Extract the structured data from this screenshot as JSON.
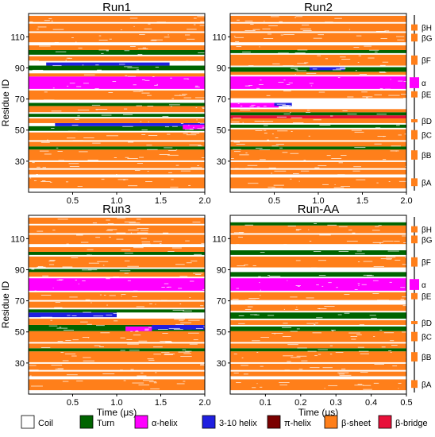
{
  "colors": {
    "coil": "#ffffff",
    "turn": "#006400",
    "alpha_helix": "#ff00ff",
    "helix_310": "#1f1fe0",
    "pi_helix": "#7a0000",
    "beta_sheet": "#ff7f1a",
    "beta_bridge": "#e8103a"
  },
  "legend": {
    "items": [
      {
        "key": "coil",
        "label": "Coil"
      },
      {
        "key": "turn",
        "label": "Turn"
      },
      {
        "key": "alpha_helix",
        "label": "α-helix"
      },
      {
        "key": "helix_310",
        "label": "3-10 helix"
      },
      {
        "key": "pi_helix",
        "label": "π-helix"
      },
      {
        "key": "beta_sheet",
        "label": "β-sheet"
      },
      {
        "key": "beta_bridge",
        "label": "β-bridge"
      }
    ]
  },
  "topology": {
    "elements": [
      {
        "label": "βH",
        "type": "beta_sheet",
        "range": [
          114,
          118
        ]
      },
      {
        "label": "βG",
        "type": "beta_sheet",
        "range": [
          107,
          112
        ]
      },
      {
        "label": "βF",
        "type": "beta_sheet",
        "range": [
          92,
          98
        ]
      },
      {
        "label": "α",
        "type": "alpha_helix",
        "range": [
          77,
          84
        ]
      },
      {
        "label": "βE",
        "type": "beta_sheet",
        "range": [
          71,
          75
        ]
      },
      {
        "label": "βD",
        "type": "beta_sheet",
        "range": [
          55,
          57
        ]
      },
      {
        "label": "βC",
        "type": "beta_sheet",
        "range": [
          44,
          50
        ]
      },
      {
        "label": "βB",
        "type": "beta_sheet",
        "range": [
          31,
          37
        ]
      },
      {
        "label": "βA",
        "type": "beta_sheet",
        "range": [
          14,
          19
        ]
      }
    ]
  },
  "chart_data": [
    {
      "type": "heatmap",
      "title": "Run1",
      "ylabel": "Residue ID",
      "xlabel": "",
      "xlim": [
        0,
        2.0
      ],
      "ylim": [
        10,
        125
      ],
      "xticks": [
        0.5,
        1.0,
        1.5,
        2.0
      ],
      "yticks": [
        30,
        50,
        70,
        90,
        110
      ],
      "segments": [
        {
          "type": "beta_sheet",
          "r": [
            13,
            19
          ]
        },
        {
          "type": "beta_sheet",
          "r": [
            22,
            24
          ]
        },
        {
          "type": "beta_sheet",
          "r": [
            26,
            29
          ]
        },
        {
          "type": "beta_sheet",
          "r": [
            31,
            37
          ]
        },
        {
          "type": "turn",
          "r": [
            38,
            39
          ]
        },
        {
          "type": "beta_sheet",
          "r": [
            40,
            42
          ]
        },
        {
          "type": "beta_sheet",
          "r": [
            44,
            48
          ]
        },
        {
          "type": "turn",
          "r": [
            50,
            52
          ]
        },
        {
          "type": "helix_310",
          "r": [
            53,
            54
          ],
          "t": [
            0.3,
            2.0
          ]
        },
        {
          "type": "alpha_helix",
          "r": [
            51,
            53
          ],
          "t": [
            1.75,
            2.0
          ]
        },
        {
          "type": "beta_sheet",
          "r": [
            55,
            57
          ]
        },
        {
          "type": "turn",
          "r": [
            59,
            60
          ]
        },
        {
          "type": "beta_sheet",
          "r": [
            62,
            65
          ]
        },
        {
          "type": "turn",
          "r": [
            66,
            67
          ]
        },
        {
          "type": "beta_sheet",
          "r": [
            70,
            75
          ]
        },
        {
          "type": "alpha_helix",
          "r": [
            77,
            84
          ]
        },
        {
          "type": "beta_sheet",
          "r": [
            85,
            86
          ]
        },
        {
          "type": "turn",
          "r": [
            89,
            91
          ]
        },
        {
          "type": "helix_310",
          "r": [
            92,
            93
          ],
          "t": [
            0.2,
            1.6
          ]
        },
        {
          "type": "beta_sheet",
          "r": [
            95,
            97
          ]
        },
        {
          "type": "turn",
          "r": [
            99,
            101
          ]
        },
        {
          "type": "beta_sheet",
          "r": [
            102,
            104
          ]
        },
        {
          "type": "beta_sheet",
          "r": [
            107,
            112
          ]
        },
        {
          "type": "beta_sheet",
          "r": [
            114,
            118
          ]
        },
        {
          "type": "beta_sheet",
          "r": [
            120,
            123
          ]
        }
      ]
    },
    {
      "type": "heatmap",
      "title": "Run2",
      "ylabel": "",
      "xlabel": "",
      "xlim": [
        0,
        2.0
      ],
      "ylim": [
        10,
        125
      ],
      "xticks": [
        0.5,
        1.0,
        1.5,
        2.0
      ],
      "yticks": [
        30,
        50,
        70,
        90,
        110
      ],
      "segments": [
        {
          "type": "beta_sheet",
          "r": [
            13,
            19
          ]
        },
        {
          "type": "beta_sheet",
          "r": [
            22,
            24
          ]
        },
        {
          "type": "beta_sheet",
          "r": [
            26,
            29
          ]
        },
        {
          "type": "beta_sheet",
          "r": [
            31,
            37
          ]
        },
        {
          "type": "turn",
          "r": [
            38,
            39
          ]
        },
        {
          "type": "beta_sheet",
          "r": [
            40,
            42
          ]
        },
        {
          "type": "beta_sheet",
          "r": [
            44,
            50
          ]
        },
        {
          "type": "turn",
          "r": [
            52,
            53
          ]
        },
        {
          "type": "beta_sheet",
          "r": [
            55,
            57
          ]
        },
        {
          "type": "beta_bridge",
          "r": [
            58,
            59
          ]
        },
        {
          "type": "turn",
          "r": [
            60,
            61
          ]
        },
        {
          "type": "beta_sheet",
          "r": [
            62,
            63
          ]
        },
        {
          "type": "alpha_helix",
          "r": [
            65,
            67
          ],
          "t": [
            0.0,
            0.55
          ]
        },
        {
          "type": "helix_310",
          "r": [
            66,
            67
          ],
          "t": [
            0.5,
            0.7
          ]
        },
        {
          "type": "beta_sheet",
          "r": [
            71,
            75
          ]
        },
        {
          "type": "alpha_helix",
          "r": [
            77,
            84
          ]
        },
        {
          "type": "beta_sheet",
          "r": [
            86,
            87
          ]
        },
        {
          "type": "turn",
          "r": [
            88,
            90
          ]
        },
        {
          "type": "helix_310",
          "r": [
            89,
            90
          ],
          "t": [
            0.9,
            1.3
          ]
        },
        {
          "type": "beta_sheet",
          "r": [
            92,
            98
          ]
        },
        {
          "type": "turn",
          "r": [
            100,
            101
          ]
        },
        {
          "type": "beta_sheet",
          "r": [
            102,
            104
          ]
        },
        {
          "type": "beta_sheet",
          "r": [
            107,
            112
          ]
        },
        {
          "type": "beta_sheet",
          "r": [
            114,
            118
          ]
        },
        {
          "type": "beta_sheet",
          "r": [
            120,
            123
          ]
        }
      ]
    },
    {
      "type": "heatmap",
      "title": "Run3",
      "ylabel": "Residue ID",
      "xlabel": "Time (μs)",
      "xlim": [
        0,
        2.0
      ],
      "ylim": [
        10,
        125
      ],
      "xticks": [
        0.5,
        1.0,
        1.5,
        2.0
      ],
      "yticks": [
        30,
        50,
        70,
        90,
        110
      ],
      "segments": [
        {
          "type": "beta_sheet",
          "r": [
            13,
            19
          ]
        },
        {
          "type": "beta_sheet",
          "r": [
            22,
            24
          ]
        },
        {
          "type": "beta_sheet",
          "r": [
            26,
            29
          ]
        },
        {
          "type": "beta_sheet",
          "r": [
            31,
            37
          ]
        },
        {
          "type": "turn",
          "r": [
            38,
            39
          ]
        },
        {
          "type": "beta_sheet",
          "r": [
            40,
            42
          ]
        },
        {
          "type": "beta_sheet",
          "r": [
            44,
            50
          ]
        },
        {
          "type": "turn",
          "r": [
            51,
            54
          ]
        },
        {
          "type": "alpha_helix",
          "r": [
            51,
            53
          ],
          "t": [
            1.1,
            1.4
          ]
        },
        {
          "type": "helix_310",
          "r": [
            52,
            54
          ],
          "t": [
            1.4,
            2.0
          ]
        },
        {
          "type": "beta_sheet",
          "r": [
            55,
            58
          ]
        },
        {
          "type": "helix_310",
          "r": [
            60,
            62
          ],
          "t": [
            0.0,
            1.0
          ]
        },
        {
          "type": "turn",
          "r": [
            63,
            64
          ]
        },
        {
          "type": "beta_sheet",
          "r": [
            66,
            69
          ]
        },
        {
          "type": "beta_sheet",
          "r": [
            71,
            75
          ]
        },
        {
          "type": "alpha_helix",
          "r": [
            77,
            84
          ]
        },
        {
          "type": "beta_sheet",
          "r": [
            86,
            88
          ]
        },
        {
          "type": "turn",
          "r": [
            89,
            90
          ]
        },
        {
          "type": "beta_sheet",
          "r": [
            92,
            98
          ]
        },
        {
          "type": "turn",
          "r": [
            100,
            101
          ]
        },
        {
          "type": "beta_sheet",
          "r": [
            102,
            104
          ]
        },
        {
          "type": "beta_sheet",
          "r": [
            107,
            112
          ]
        },
        {
          "type": "beta_sheet",
          "r": [
            114,
            118
          ]
        },
        {
          "type": "beta_sheet",
          "r": [
            120,
            123
          ]
        }
      ]
    },
    {
      "type": "heatmap",
      "title": "Run-AA",
      "ylabel": "",
      "xlabel": "Time (μs)",
      "xlim": [
        0,
        0.5
      ],
      "ylim": [
        10,
        125
      ],
      "xticks": [
        0.1,
        0.2,
        0.3,
        0.4,
        0.5
      ],
      "yticks": [
        30,
        50,
        70,
        90,
        110
      ],
      "segments": [
        {
          "type": "beta_sheet",
          "r": [
            13,
            19
          ]
        },
        {
          "type": "beta_sheet",
          "r": [
            22,
            24
          ]
        },
        {
          "type": "beta_sheet",
          "r": [
            26,
            29
          ]
        },
        {
          "type": "beta_sheet",
          "r": [
            31,
            37
          ]
        },
        {
          "type": "turn",
          "r": [
            38,
            39
          ]
        },
        {
          "type": "beta_sheet",
          "r": [
            40,
            42
          ]
        },
        {
          "type": "beta_sheet",
          "r": [
            44,
            50
          ]
        },
        {
          "type": "turn",
          "r": [
            51,
            53
          ]
        },
        {
          "type": "beta_sheet",
          "r": [
            55,
            57
          ]
        },
        {
          "type": "turn",
          "r": [
            59,
            62
          ]
        },
        {
          "type": "beta_sheet",
          "r": [
            64,
            67
          ]
        },
        {
          "type": "beta_sheet",
          "r": [
            71,
            75
          ]
        },
        {
          "type": "alpha_helix",
          "r": [
            77,
            84
          ]
        },
        {
          "type": "turn",
          "r": [
            86,
            88
          ]
        },
        {
          "type": "beta_sheet",
          "r": [
            92,
            98
          ]
        },
        {
          "type": "turn",
          "r": [
            100,
            102
          ]
        },
        {
          "type": "beta_sheet",
          "r": [
            107,
            112
          ]
        },
        {
          "type": "beta_sheet",
          "r": [
            114,
            118
          ]
        },
        {
          "type": "turn",
          "r": [
            119,
            120
          ]
        }
      ]
    }
  ]
}
